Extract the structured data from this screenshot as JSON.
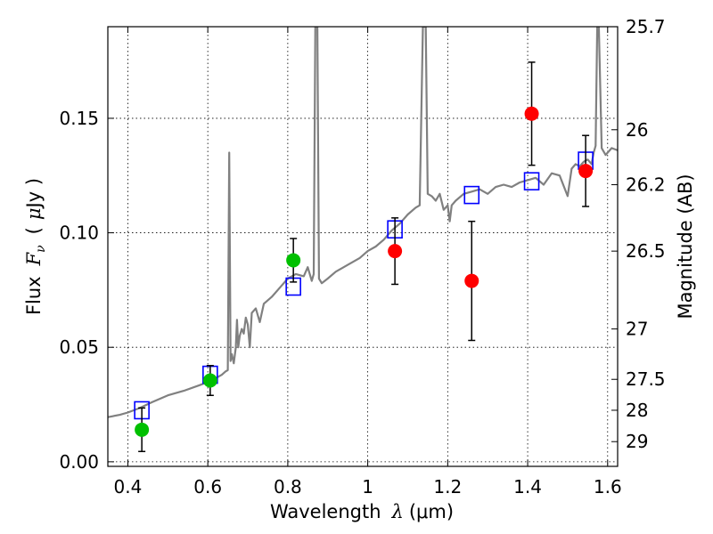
{
  "chart_data": {
    "type": "scatter",
    "xlabel_parts": {
      "label": "Wavelength",
      "symbol": "λ",
      "unit": "(μm)"
    },
    "ylabel_parts": {
      "label": "Flux",
      "symbol": "F",
      "subscript": "ν",
      "unit_open": "(",
      "unit_mu": "μ",
      "unit_rest": "Jy )"
    },
    "y2label": "Magnitude (AB)",
    "xlim": [
      0.35,
      1.625
    ],
    "ylim": [
      -0.002,
      0.19
    ],
    "grid": true,
    "x_ticks": [
      {
        "value": 0.4,
        "label": "0.4"
      },
      {
        "value": 0.6,
        "label": "0.6"
      },
      {
        "value": 0.8,
        "label": "0.8"
      },
      {
        "value": 1.0,
        "label": "1"
      },
      {
        "value": 1.2,
        "label": "1.2"
      },
      {
        "value": 1.4,
        "label": "1.4"
      },
      {
        "value": 1.6,
        "label": "1.6"
      }
    ],
    "y_ticks": [
      {
        "value": 0.0,
        "label": "0.00"
      },
      {
        "value": 0.05,
        "label": "0.05"
      },
      {
        "value": 0.1,
        "label": "0.10"
      },
      {
        "value": 0.15,
        "label": "0.15"
      }
    ],
    "y2_ticks": [
      {
        "label": "25.7",
        "flux": 0.19
      },
      {
        "label": "26",
        "flux": 0.145
      },
      {
        "label": "26.2",
        "flux": 0.121
      },
      {
        "label": "26.5",
        "flux": 0.092
      },
      {
        "label": "27",
        "flux": 0.058
      },
      {
        "label": "27.5",
        "flux": 0.036
      },
      {
        "label": "28",
        "flux": 0.0225
      },
      {
        "label": "29",
        "flux": 0.0088
      }
    ],
    "series": [
      {
        "name": "model-spectrum",
        "kind": "line",
        "color": "#808080",
        "points": [
          [
            0.35,
            0.0195
          ],
          [
            0.38,
            0.0205
          ],
          [
            0.4,
            0.0215
          ],
          [
            0.43,
            0.0235
          ],
          [
            0.46,
            0.026
          ],
          [
            0.5,
            0.029
          ],
          [
            0.54,
            0.031
          ],
          [
            0.58,
            0.0335
          ],
          [
            0.61,
            0.0355
          ],
          [
            0.635,
            0.038
          ],
          [
            0.645,
            0.0395
          ],
          [
            0.65,
            0.04
          ],
          [
            0.6535,
            0.135
          ],
          [
            0.657,
            0.044
          ],
          [
            0.66,
            0.047
          ],
          [
            0.665,
            0.043
          ],
          [
            0.67,
            0.05
          ],
          [
            0.673,
            0.062
          ],
          [
            0.676,
            0.05
          ],
          [
            0.68,
            0.055
          ],
          [
            0.685,
            0.058
          ],
          [
            0.69,
            0.056
          ],
          [
            0.695,
            0.063
          ],
          [
            0.7,
            0.06
          ],
          [
            0.705,
            0.05
          ],
          [
            0.71,
            0.065
          ],
          [
            0.72,
            0.067
          ],
          [
            0.73,
            0.061
          ],
          [
            0.74,
            0.069
          ],
          [
            0.76,
            0.072
          ],
          [
            0.78,
            0.076
          ],
          [
            0.8,
            0.08
          ],
          [
            0.82,
            0.082
          ],
          [
            0.84,
            0.081
          ],
          [
            0.85,
            0.085
          ],
          [
            0.86,
            0.079
          ],
          [
            0.865,
            0.082
          ],
          [
            0.869,
            0.19
          ],
          [
            0.874,
            0.19
          ],
          [
            0.878,
            0.08
          ],
          [
            0.885,
            0.078
          ],
          [
            0.9,
            0.08
          ],
          [
            0.92,
            0.083
          ],
          [
            0.95,
            0.086
          ],
          [
            0.98,
            0.089
          ],
          [
            1.0,
            0.092
          ],
          [
            1.02,
            0.094
          ],
          [
            1.04,
            0.097
          ],
          [
            1.06,
            0.101
          ],
          [
            1.08,
            0.104
          ],
          [
            1.1,
            0.108
          ],
          [
            1.12,
            0.111
          ],
          [
            1.13,
            0.112
          ],
          [
            1.138,
            0.19
          ],
          [
            1.145,
            0.19
          ],
          [
            1.15,
            0.117
          ],
          [
            1.16,
            0.116
          ],
          [
            1.17,
            0.114
          ],
          [
            1.18,
            0.117
          ],
          [
            1.19,
            0.11
          ],
          [
            1.2,
            0.112
          ],
          [
            1.205,
            0.105
          ],
          [
            1.21,
            0.112
          ],
          [
            1.22,
            0.114
          ],
          [
            1.24,
            0.117
          ],
          [
            1.26,
            0.118
          ],
          [
            1.28,
            0.119
          ],
          [
            1.3,
            0.117
          ],
          [
            1.32,
            0.12
          ],
          [
            1.34,
            0.121
          ],
          [
            1.36,
            0.12
          ],
          [
            1.38,
            0.122
          ],
          [
            1.4,
            0.123
          ],
          [
            1.42,
            0.124
          ],
          [
            1.44,
            0.121
          ],
          [
            1.46,
            0.126
          ],
          [
            1.48,
            0.125
          ],
          [
            1.5,
            0.116
          ],
          [
            1.51,
            0.128
          ],
          [
            1.52,
            0.13
          ],
          [
            1.53,
            0.129
          ],
          [
            1.54,
            0.131
          ],
          [
            1.55,
            0.132
          ],
          [
            1.56,
            0.13
          ],
          [
            1.565,
            0.135
          ],
          [
            1.57,
            0.138
          ],
          [
            1.574,
            0.19
          ],
          [
            1.578,
            0.19
          ],
          [
            1.585,
            0.137
          ],
          [
            1.595,
            0.134
          ],
          [
            1.6,
            0.135
          ],
          [
            1.61,
            0.137
          ],
          [
            1.625,
            0.136
          ]
        ]
      },
      {
        "name": "model-photometry",
        "kind": "open-square",
        "color": "#0000ff",
        "points": [
          [
            0.435,
            0.0225
          ],
          [
            0.606,
            0.038
          ],
          [
            0.814,
            0.0765
          ],
          [
            1.068,
            0.1015
          ],
          [
            1.26,
            0.1165
          ],
          [
            1.41,
            0.1225
          ],
          [
            1.545,
            0.1315
          ]
        ]
      },
      {
        "name": "optical-detections",
        "kind": "filled-circle",
        "color": "#00c000",
        "points": [
          {
            "x": 0.435,
            "y": 0.014,
            "err": 0.0095
          },
          {
            "x": 0.606,
            "y": 0.0355,
            "err": 0.0065
          },
          {
            "x": 0.814,
            "y": 0.088,
            "err": 0.0095
          }
        ]
      },
      {
        "name": "infrared-detections",
        "kind": "filled-circle",
        "color": "#ff0000",
        "points": [
          {
            "x": 1.068,
            "y": 0.092,
            "err": 0.0145
          },
          {
            "x": 1.26,
            "y": 0.079,
            "err": 0.026
          },
          {
            "x": 1.41,
            "y": 0.152,
            "err": 0.0225
          },
          {
            "x": 1.545,
            "y": 0.127,
            "err": 0.0155
          }
        ]
      }
    ]
  }
}
